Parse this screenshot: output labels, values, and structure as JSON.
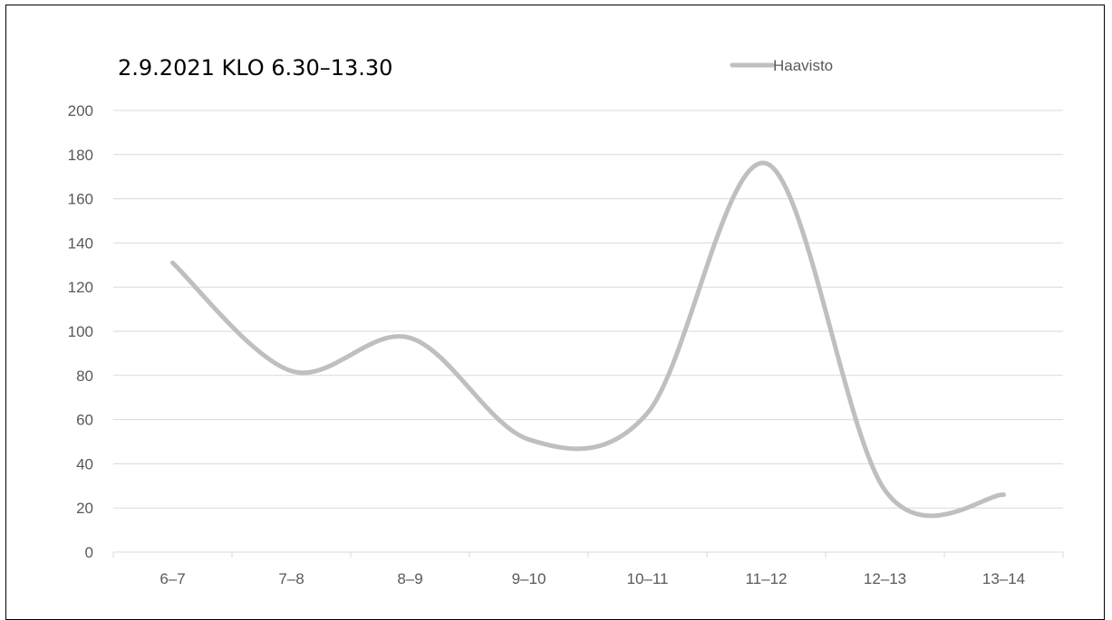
{
  "chart_data": {
    "type": "line",
    "title": "2.9.2021 KLO 6.30–13.30",
    "xlabel": "",
    "ylabel": "",
    "categories": [
      "6–7",
      "7–8",
      "8–9",
      "9–10",
      "10–11",
      "11–12",
      "12–13",
      "13–14"
    ],
    "series": [
      {
        "name": "Haavisto",
        "values": [
          131,
          82,
          97,
          51,
          63,
          176,
          28,
          26
        ],
        "color": "#bfbfbf"
      }
    ],
    "ylim": [
      0,
      200
    ],
    "yticks": [
      0,
      20,
      40,
      60,
      80,
      100,
      120,
      140,
      160,
      180,
      200
    ],
    "grid": true,
    "smooth": true,
    "legend_position": "top-right",
    "colors": {
      "gridline": "#d9d9d9",
      "axis": "#d9d9d9",
      "tick_text": "#595959",
      "title_text": "#000000"
    }
  }
}
